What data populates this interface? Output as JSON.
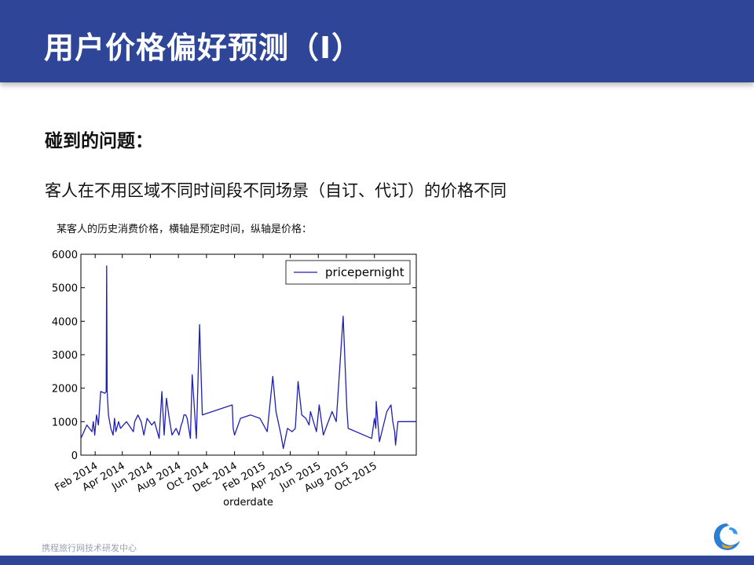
{
  "slide": {
    "title": "用户价格偏好预测（Ⅰ）",
    "problem_heading": "碰到的问题：",
    "problem_text": "客人在不用区域不同时间段不同场景（自订、代订）的价格不同",
    "chart_caption": "某客人的历史消费价格，横轴是预定时间，纵轴是价格："
  },
  "footer": {
    "text": "携程旅行网技术研发中心",
    "logo_icon": "dolphin-logo-icon"
  },
  "colors": {
    "header": "#2f4597",
    "line": "#1f1fb4"
  },
  "chart_data": {
    "type": "line",
    "title": "",
    "xlabel": "orderdate",
    "ylabel": "",
    "x_ticks": [
      "Feb 2014",
      "Apr 2014",
      "Jun 2014",
      "Aug 2014",
      "Oct 2014",
      "Dec 2014",
      "Feb 2015",
      "Apr 2015",
      "Jun 2015",
      "Aug 2015",
      "Oct 2015"
    ],
    "xlim": [
      "2014-01-01",
      "2015-12-31"
    ],
    "ylim": [
      0,
      6000
    ],
    "y_ticks": [
      0,
      1000,
      2000,
      3000,
      4000,
      5000,
      6000
    ],
    "y_tick_labels": [
      "0",
      "1000",
      "2000",
      "3000",
      "4000",
      "5000",
      "6000"
    ],
    "legend": {
      "position": "top-right",
      "entries": [
        "pricepernight"
      ]
    },
    "grid": false,
    "series": [
      {
        "name": "pricepernight",
        "x": [
          "2014-01-01",
          "2014-01-14",
          "2014-01-25",
          "2014-01-28",
          "2014-01-31",
          "2014-02-04",
          "2014-02-08",
          "2014-02-13",
          "2014-02-22",
          "2014-02-25",
          "2014-02-26",
          "2014-02-27",
          "2014-03-02",
          "2014-03-07",
          "2014-03-12",
          "2014-03-15",
          "2014-03-18",
          "2014-03-24",
          "2014-03-28",
          "2014-04-10",
          "2014-04-25",
          "2014-04-28",
          "2014-05-05",
          "2014-05-12",
          "2014-05-18",
          "2014-05-22",
          "2014-05-25",
          "2014-06-04",
          "2014-06-10",
          "2014-06-20",
          "2014-06-26",
          "2014-07-01",
          "2014-07-06",
          "2014-07-12",
          "2014-07-18",
          "2014-07-27",
          "2014-08-02",
          "2014-08-07",
          "2014-08-10",
          "2014-08-13",
          "2014-08-17",
          "2014-08-20",
          "2014-08-27",
          "2014-08-31",
          "2014-09-09",
          "2014-09-16",
          "2014-09-22",
          "2014-11-26",
          "2014-11-28",
          "2014-12-01",
          "2014-12-14",
          "2015-01-05",
          "2015-01-25",
          "2015-02-10",
          "2015-02-22",
          "2015-03-01",
          "2015-03-12",
          "2015-03-17",
          "2015-03-26",
          "2015-04-05",
          "2015-04-12",
          "2015-04-18",
          "2015-04-26",
          "2015-05-05",
          "2015-05-12",
          "2015-05-15",
          "2015-05-28",
          "2015-06-03",
          "2015-06-08",
          "2015-06-12",
          "2015-06-20",
          "2015-07-01",
          "2015-07-10",
          "2015-07-25",
          "2015-08-02",
          "2015-08-05",
          "2015-09-25",
          "2015-10-01",
          "2015-10-04",
          "2015-10-05",
          "2015-10-12",
          "2015-10-28",
          "2015-11-06",
          "2015-11-10",
          "2015-11-14",
          "2015-11-16",
          "2015-11-21",
          "2015-12-31"
        ],
        "values": [
          500,
          900,
          700,
          1000,
          600,
          1200,
          900,
          1900,
          1850,
          1900,
          5650,
          1900,
          1200,
          800,
          600,
          1100,
          700,
          1000,
          800,
          1000,
          700,
          1000,
          1200,
          1000,
          600,
          900,
          1100,
          900,
          1000,
          500,
          1900,
          600,
          1700,
          1100,
          600,
          800,
          600,
          900,
          1000,
          1200,
          1200,
          1100,
          500,
          2400,
          500,
          3900,
          1200,
          1500,
          800,
          600,
          1100,
          1200,
          1100,
          700,
          2350,
          1300,
          600,
          200,
          800,
          700,
          800,
          2200,
          1200,
          1100,
          900,
          1300,
          700,
          1500,
          1000,
          600,
          900,
          1300,
          1000,
          4150,
          1400,
          800,
          500,
          1100,
          800,
          1600,
          400,
          1300,
          1500,
          1000,
          700,
          300,
          1000,
          1000
        ]
      }
    ]
  }
}
